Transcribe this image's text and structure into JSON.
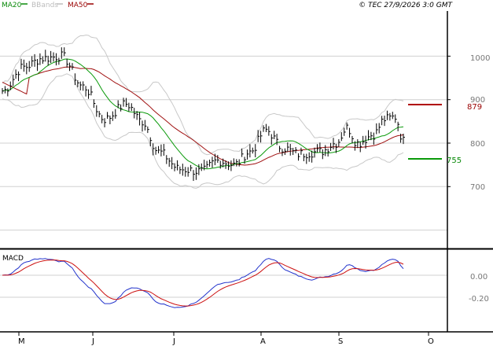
{
  "header": {
    "legend": [
      {
        "label": "MA20",
        "color": "#0a8a0a"
      },
      {
        "label": "BBands",
        "color": "#bdbdbd"
      },
      {
        "label": "MA50",
        "color": "#990000"
      }
    ],
    "copyright": "© TEC 27/9/2026 3:0 GMT"
  },
  "colors": {
    "ma20": "#0a9a0a",
    "ma50": "#a01010",
    "bbands": "#c8c8c8",
    "price": "#000000",
    "macd": "#2233cc",
    "signal": "#cc1111",
    "grid": "#d0d0d0",
    "axis": "#000000"
  },
  "markers": {
    "ma50_value": "879",
    "ma20_value": "755"
  },
  "chart_data": [
    {
      "type": "line",
      "title": "",
      "x": [
        "M",
        "J",
        "J",
        "A",
        "S",
        "O"
      ],
      "xlabel": "",
      "ylabel": "",
      "yticks": [
        "1000",
        "900",
        "800",
        "700"
      ],
      "ylim": [
        590,
        1050
      ],
      "grid": true,
      "legend_placement": "top-left",
      "series": [
        {
          "name": "MA20"
        },
        {
          "name": "BBands"
        },
        {
          "name": "MA50"
        }
      ]
    },
    {
      "type": "line",
      "title": "MACD",
      "yticks": [
        "0.00",
        "-0.20"
      ],
      "ylim": [
        -0.44,
        0.26
      ],
      "grid": true
    }
  ]
}
